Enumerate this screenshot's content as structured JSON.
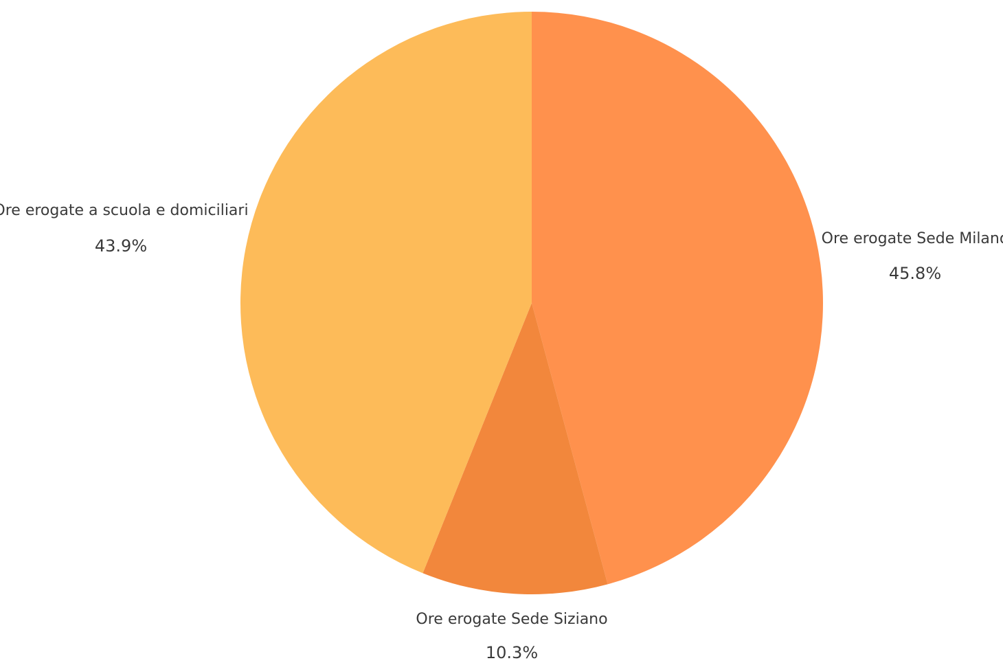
{
  "chart_data": {
    "type": "pie",
    "slices": [
      {
        "label": "Ore erogate Sede Milano",
        "value": 45.8,
        "value_label": "45.8%",
        "color": "#FF914D"
      },
      {
        "label": "Ore erogate Sede Siziano",
        "value": 10.3,
        "value_label": "10.3%",
        "color": "#F2873C"
      },
      {
        "label": "Ore erogate a scuola e domiciliari",
        "value": 43.9,
        "value_label": "43.9%",
        "color": "#FDBB59"
      }
    ]
  }
}
